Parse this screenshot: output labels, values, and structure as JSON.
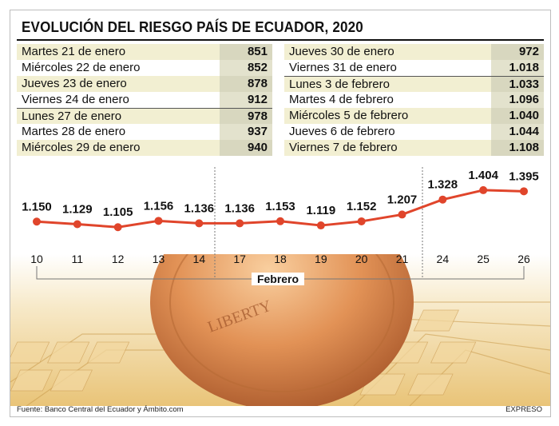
{
  "title": "EVOLUCIÓN DEL RIESGO PAÍS DE ECUADOR, 2020",
  "table_left": [
    {
      "date": "Martes 21 de enero",
      "value": "851"
    },
    {
      "date": "Miércoles 22 de enero",
      "value": "852"
    },
    {
      "date": "Jueves 23 de enero",
      "value": "878"
    },
    {
      "date": "Viernes 24 de enero",
      "value": "912"
    },
    {
      "date": "Lunes 27 de enero",
      "value": "978"
    },
    {
      "date": "Martes 28 de enero",
      "value": "937"
    },
    {
      "date": "Miércoles 29 de enero",
      "value": "940"
    }
  ],
  "table_right": [
    {
      "date": "Jueves 30 de enero",
      "value": "972"
    },
    {
      "date": "Viernes 31 de enero",
      "value": "1.018"
    },
    {
      "date": "Lunes 3 de febrero",
      "value": "1.033"
    },
    {
      "date": "Martes 4 de febrero",
      "value": "1.096"
    },
    {
      "date": "Miércoles 5 de febrero",
      "value": "1.040"
    },
    {
      "date": "Jueves 6 de febrero",
      "value": "1.044"
    },
    {
      "date": "Viernes 7 de febrero",
      "value": "1.108"
    }
  ],
  "chart_data": {
    "type": "line",
    "title": "EVOLUCIÓN DEL RIESGO PAÍS DE ECUADOR, 2020",
    "xlabel": "Febrero",
    "categories": [
      "10",
      "11",
      "12",
      "13",
      "14",
      "17",
      "18",
      "19",
      "20",
      "21",
      "24",
      "25",
      "26"
    ],
    "values": [
      1150,
      1129,
      1105,
      1156,
      1136,
      1136,
      1153,
      1119,
      1152,
      1207,
      1328,
      1404,
      1395
    ],
    "data_labels": [
      "1.150",
      "1.129",
      "1.105",
      "1.156",
      "1.136",
      "1.136",
      "1.153",
      "1.119",
      "1.152",
      "1.207",
      "1.328",
      "1.404",
      "1.395"
    ],
    "line_color": "#e0452b",
    "grid": false
  },
  "source": "Fuente: Banco Central del Ecuador y Ámbito.com",
  "brand": "EXPRESO"
}
